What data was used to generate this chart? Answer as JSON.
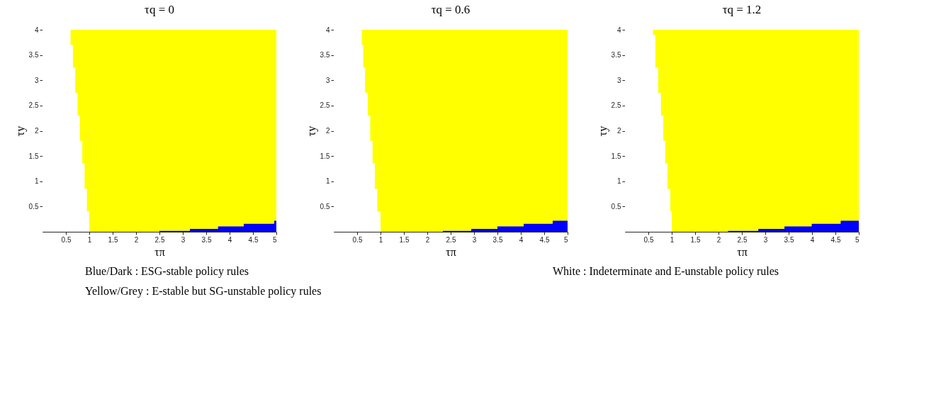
{
  "chart_data": [
    {
      "type": "area",
      "stacked": true,
      "title": "τq = 0",
      "xlabel": "τπ",
      "ylabel": "τy",
      "x": [
        0,
        0.6,
        0.6,
        0.65,
        0.65,
        0.7,
        0.7,
        0.75,
        0.75,
        0.8,
        0.8,
        0.85,
        0.85,
        0.9,
        0.9,
        0.95,
        0.95,
        1,
        1,
        2.5,
        2.5,
        3.15,
        3.15,
        3.75,
        3.75,
        4.3,
        4.3,
        4.95,
        4.95,
        5
      ],
      "series": [
        {
          "color": "#ffffff",
          "values": [
            4,
            4,
            3.7,
            3.7,
            3.25,
            3.25,
            2.75,
            2.75,
            2.3,
            2.3,
            1.8,
            1.8,
            1.35,
            1.35,
            0.85,
            0.85,
            0.4,
            0.4,
            0,
            null,
            null,
            null,
            null,
            null,
            null,
            null,
            null,
            null,
            null,
            null
          ]
        },
        {
          "color": "#0000ff",
          "values": [
            null,
            null,
            null,
            null,
            null,
            null,
            null,
            null,
            null,
            null,
            null,
            null,
            null,
            null,
            null,
            null,
            null,
            null,
            null,
            0,
            0.02,
            0.02,
            0.06,
            0.06,
            0.11,
            0.11,
            0.16,
            0.16,
            0.22,
            0.22
          ]
        },
        {
          "color": "#ffff00",
          "values": [
            0,
            0,
            0.3,
            0.3,
            0.75,
            0.75,
            1.25,
            1.25,
            1.7,
            1.7,
            2.2,
            2.2,
            2.65,
            2.65,
            3.15,
            3.15,
            3.6,
            3.6,
            4,
            4,
            3.98,
            3.98,
            3.94,
            3.94,
            3.89,
            3.89,
            3.84,
            3.84,
            3.78,
            3.78
          ]
        }
      ],
      "xlim": [
        0,
        5
      ],
      "ylim": [
        0,
        4
      ],
      "xticks": [
        0.5,
        1,
        1.5,
        2,
        2.5,
        3,
        3.5,
        4,
        4.5,
        5
      ],
      "yticks": [
        0.5,
        1,
        1.5,
        2,
        2.5,
        3,
        3.5,
        4
      ],
      "grid": false,
      "legend": false,
      "annotations": [
        "Blue/Dark : ESG-stable policy rules",
        "White : Indeterminate and E-unstable policy rules",
        "Yellow/Grey : E-stable but SG-unstable policy rules"
      ]
    },
    {
      "type": "area",
      "stacked": true,
      "title": "τq = 0.6",
      "xlabel": "τπ",
      "ylabel": "τy",
      "x": [
        0,
        0.6,
        0.6,
        0.63,
        0.63,
        0.67,
        0.67,
        0.73,
        0.73,
        0.78,
        0.78,
        0.83,
        0.83,
        0.88,
        0.88,
        0.93,
        0.93,
        1,
        1,
        2.33,
        2.33,
        2.94,
        2.94,
        3.5,
        3.5,
        4.06,
        4.06,
        4.68,
        4.68,
        5
      ],
      "series": [
        {
          "color": "#ffffff",
          "values": [
            4,
            4,
            3.7,
            3.7,
            3.25,
            3.25,
            2.75,
            2.75,
            2.3,
            2.3,
            1.8,
            1.8,
            1.35,
            1.35,
            0.85,
            0.85,
            0.4,
            0.4,
            0,
            null,
            null,
            null,
            null,
            null,
            null,
            null,
            null,
            null,
            null,
            null
          ]
        },
        {
          "color": "#0000ff",
          "values": [
            null,
            null,
            null,
            null,
            null,
            null,
            null,
            null,
            null,
            null,
            null,
            null,
            null,
            null,
            null,
            null,
            null,
            null,
            null,
            0,
            0.02,
            0.02,
            0.06,
            0.06,
            0.11,
            0.11,
            0.16,
            0.16,
            0.22,
            0.22
          ]
        },
        {
          "color": "#ffff00",
          "values": [
            0,
            0,
            0.3,
            0.3,
            0.75,
            0.75,
            1.25,
            1.25,
            1.7,
            1.7,
            2.2,
            2.2,
            2.65,
            2.65,
            3.15,
            3.15,
            3.6,
            3.6,
            4,
            4,
            3.98,
            3.98,
            3.94,
            3.94,
            3.89,
            3.89,
            3.84,
            3.84,
            3.78,
            3.78
          ]
        }
      ],
      "xlim": [
        0,
        5
      ],
      "ylim": [
        0,
        4
      ],
      "xticks": [
        0.5,
        1,
        1.5,
        2,
        2.5,
        3,
        3.5,
        4,
        4.5,
        5
      ],
      "yticks": [
        0.5,
        1,
        1.5,
        2,
        2.5,
        3,
        3.5,
        4
      ],
      "grid": false,
      "legend": false
    },
    {
      "type": "area",
      "stacked": true,
      "title": "τq = 1.2",
      "xlabel": "τπ",
      "ylabel": "τy",
      "x": [
        0,
        0.6,
        0.6,
        0.65,
        0.65,
        0.71,
        0.71,
        0.77,
        0.77,
        0.82,
        0.82,
        0.86,
        0.86,
        0.91,
        0.91,
        0.97,
        0.97,
        1,
        1,
        2.2,
        2.2,
        2.85,
        2.85,
        3.41,
        3.41,
        3.99,
        3.99,
        4.61,
        4.61,
        5
      ],
      "series": [
        {
          "color": "#ffffff",
          "values": [
            4,
            4,
            3.9,
            3.9,
            3.25,
            3.25,
            2.75,
            2.75,
            2.3,
            2.3,
            1.8,
            1.8,
            1.35,
            1.35,
            0.85,
            0.85,
            0.4,
            0.4,
            0,
            null,
            null,
            null,
            null,
            null,
            null,
            null,
            null,
            null,
            null,
            null
          ]
        },
        {
          "color": "#0000ff",
          "values": [
            null,
            null,
            null,
            null,
            null,
            null,
            null,
            null,
            null,
            null,
            null,
            null,
            null,
            null,
            null,
            null,
            null,
            null,
            null,
            0,
            0.02,
            0.02,
            0.06,
            0.06,
            0.11,
            0.11,
            0.16,
            0.16,
            0.22,
            0.22
          ]
        },
        {
          "color": "#ffff00",
          "values": [
            0,
            0,
            0.1,
            0.1,
            0.75,
            0.75,
            1.25,
            1.25,
            1.7,
            1.7,
            2.2,
            2.2,
            2.65,
            2.65,
            3.15,
            3.15,
            3.6,
            3.6,
            4,
            4,
            3.98,
            3.98,
            3.94,
            3.94,
            3.89,
            3.89,
            3.84,
            3.84,
            3.78,
            3.78
          ]
        }
      ],
      "xlim": [
        0,
        5
      ],
      "ylim": [
        0,
        4
      ],
      "xticks": [
        0.5,
        1,
        1.5,
        2,
        2.5,
        3,
        3.5,
        4,
        4.5,
        5
      ],
      "yticks": [
        0.5,
        1,
        1.5,
        2,
        2.5,
        3,
        3.5,
        4
      ],
      "grid": false,
      "legend": false
    }
  ]
}
